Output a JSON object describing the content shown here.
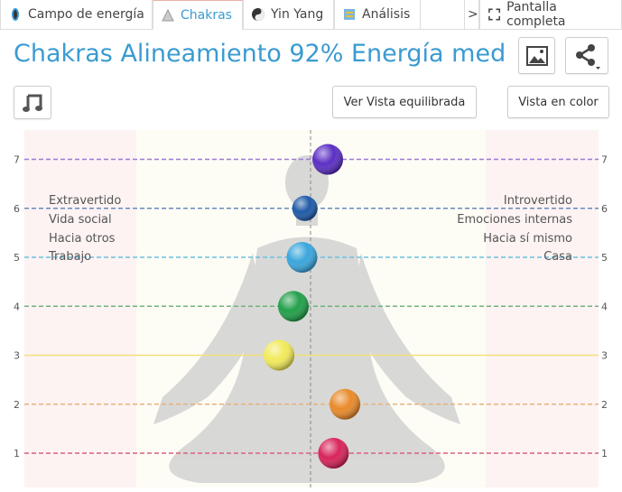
{
  "tabs": [
    {
      "label": "Campo de energía",
      "icon": "aura-icon"
    },
    {
      "label": "Chakras",
      "icon": "chakra-figure-icon",
      "active": true
    },
    {
      "label": "Yin Yang",
      "icon": "yin-yang-icon"
    },
    {
      "label": "Análisis",
      "icon": "analysis-icon"
    }
  ],
  "more_tabs": ">",
  "fullscreen_label": "Pantalla completa",
  "title": "Chakras Alineamiento 92% Energía med",
  "buttons": {
    "balanced_view": "Ver Vista equilibrada",
    "color_view": "Vista en color"
  },
  "left_labels": [
    "Extravertido",
    "Vida social",
    "Hacia otros",
    "Trabajo"
  ],
  "right_labels": [
    "Introvertido",
    "Emociones internas",
    "Hacia sí mismo",
    "Casa"
  ],
  "chart_data": {
    "type": "scatter",
    "y_ticks": [
      1,
      2,
      3,
      4,
      5,
      6,
      7
    ],
    "ylim": [
      0.3,
      7.6
    ],
    "xlim": [
      -1,
      1
    ],
    "grid": "dashed horizontal lines per level",
    "points": [
      {
        "level": 7,
        "x": 0.06,
        "color": "#5b2fc4"
      },
      {
        "level": 6,
        "x": -0.02,
        "color": "#1f5aa8"
      },
      {
        "level": 5,
        "x": -0.03,
        "color": "#3aa6dc"
      },
      {
        "level": 4,
        "x": -0.06,
        "color": "#22a04a"
      },
      {
        "level": 3,
        "x": -0.11,
        "color": "#f2ea5a"
      },
      {
        "level": 2,
        "x": 0.12,
        "color": "#e98a2a"
      },
      {
        "level": 1,
        "x": 0.08,
        "color": "#d8245a"
      }
    ],
    "line_colors": [
      "#d9607e",
      "#e8b27a",
      "#f2e27a",
      "#6fb47a",
      "#6cc0e0",
      "#6a88c0",
      "#9a7ad8"
    ]
  }
}
